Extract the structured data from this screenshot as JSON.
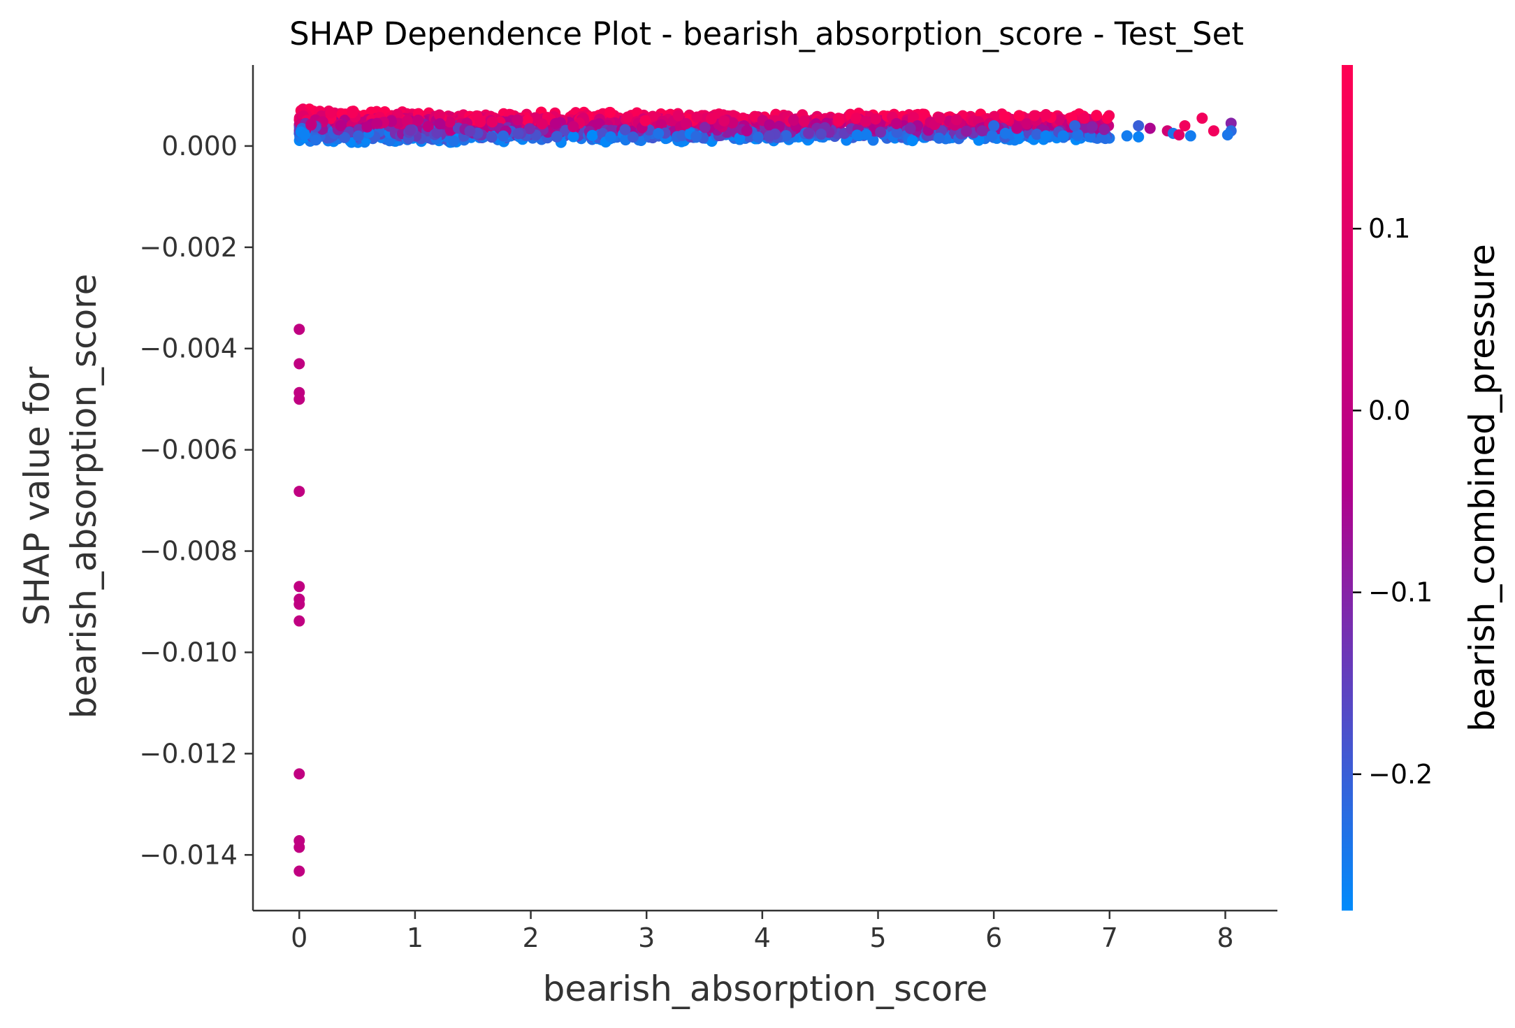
{
  "chart_data": {
    "type": "scatter",
    "title": "SHAP Dependence Plot - bearish_absorption_score - Test_Set",
    "xlabel": "bearish_absorption_score",
    "ylabel_line1": "SHAP value for",
    "ylabel_line2": "bearish_absorption_score",
    "xlim": [
      -0.4,
      8.45
    ],
    "ylim": [
      -0.0151,
      0.0016
    ],
    "x_ticks": [
      0,
      1,
      2,
      3,
      4,
      5,
      6,
      7,
      8
    ],
    "x_tick_labels": [
      "0",
      "1",
      "2",
      "3",
      "4",
      "5",
      "6",
      "7",
      "8"
    ],
    "y_ticks": [
      0,
      -0.002,
      -0.004,
      -0.006,
      -0.008,
      -0.01,
      -0.012,
      -0.014
    ],
    "y_tick_labels": [
      "0.000",
      "−0.002",
      "−0.004",
      "−0.006",
      "−0.008",
      "−0.010",
      "−0.012",
      "−0.014"
    ],
    "grid": false,
    "colorbar": {
      "label": "bearish_combined_pressure",
      "vmin": -0.275,
      "vmax": 0.19,
      "ticks": [
        0.1,
        0.0,
        -0.1,
        -0.2
      ],
      "tick_labels": [
        "0.1",
        "0.0",
        "−0.1",
        "−0.2"
      ],
      "colors": [
        "#008bfb",
        "#ff0052"
      ]
    },
    "outliers": [
      {
        "x": 0.0,
        "y": -0.00362,
        "c": 0.0
      },
      {
        "x": 0.0,
        "y": -0.0043,
        "c": 0.0
      },
      {
        "x": 0.0,
        "y": -0.00487,
        "c": 0.0
      },
      {
        "x": 0.0,
        "y": -0.005,
        "c": 0.0
      },
      {
        "x": 0.0,
        "y": -0.00682,
        "c": 0.0
      },
      {
        "x": 0.0,
        "y": -0.0087,
        "c": 0.0
      },
      {
        "x": 0.0,
        "y": -0.00895,
        "c": 0.0
      },
      {
        "x": 0.0,
        "y": -0.00905,
        "c": 0.0
      },
      {
        "x": 0.0,
        "y": -0.00938,
        "c": 0.0
      },
      {
        "x": 0.0,
        "y": -0.0124,
        "c": 0.0
      },
      {
        "x": 0.0,
        "y": -0.01372,
        "c": 0.0
      },
      {
        "x": 0.0,
        "y": -0.01385,
        "c": 0.0
      },
      {
        "x": 0.0,
        "y": -0.01432,
        "c": 0.0
      }
    ],
    "main_band": {
      "x_range": [
        0,
        8.05
      ],
      "y_range": [
        5e-05,
        0.0008
      ],
      "color_trend": "higher color values sit at higher SHAP values; density decreases with x"
    },
    "sparse_points": [
      {
        "x": 6.35,
        "y": 0.0006,
        "c": 0.15
      },
      {
        "x": 6.45,
        "y": 0.00062,
        "c": 0.15
      },
      {
        "x": 6.78,
        "y": 0.00055,
        "c": 0.15
      },
      {
        "x": 7.8,
        "y": 0.00055,
        "c": 0.15
      },
      {
        "x": 7.65,
        "y": 0.0004,
        "c": 0.15
      },
      {
        "x": 7.5,
        "y": 0.0003,
        "c": 0.05
      },
      {
        "x": 7.35,
        "y": 0.00035,
        "c": -0.05
      },
      {
        "x": 6.2,
        "y": 0.00035,
        "c": 0.0
      },
      {
        "x": 6.85,
        "y": 0.00038,
        "c": -0.1
      },
      {
        "x": 7.25,
        "y": 0.0004,
        "c": -0.2
      },
      {
        "x": 8.05,
        "y": 0.00045,
        "c": -0.1
      },
      {
        "x": 8.05,
        "y": 0.0003,
        "c": -0.22
      },
      {
        "x": 7.15,
        "y": 0.0002,
        "c": -0.25
      },
      {
        "x": 7.25,
        "y": 0.00018,
        "c": -0.26
      },
      {
        "x": 6.45,
        "y": 0.0002,
        "c": -0.26
      },
      {
        "x": 6.6,
        "y": 0.0002,
        "c": -0.25
      },
      {
        "x": 6.1,
        "y": 0.00025,
        "c": -0.24
      },
      {
        "x": 6.0,
        "y": 0.0004,
        "c": -0.22
      },
      {
        "x": 5.9,
        "y": 0.0003,
        "c": -0.1
      },
      {
        "x": 7.7,
        "y": 0.0002,
        "c": -0.25
      },
      {
        "x": 7.55,
        "y": 0.00025,
        "c": -0.24
      },
      {
        "x": 6.7,
        "y": 0.0004,
        "c": -0.21
      },
      {
        "x": 7.9,
        "y": 0.0003,
        "c": 0.15
      },
      {
        "x": 7.6,
        "y": 0.00022,
        "c": 0.1
      },
      {
        "x": 8.02,
        "y": 0.00022,
        "c": -0.24
      }
    ]
  }
}
